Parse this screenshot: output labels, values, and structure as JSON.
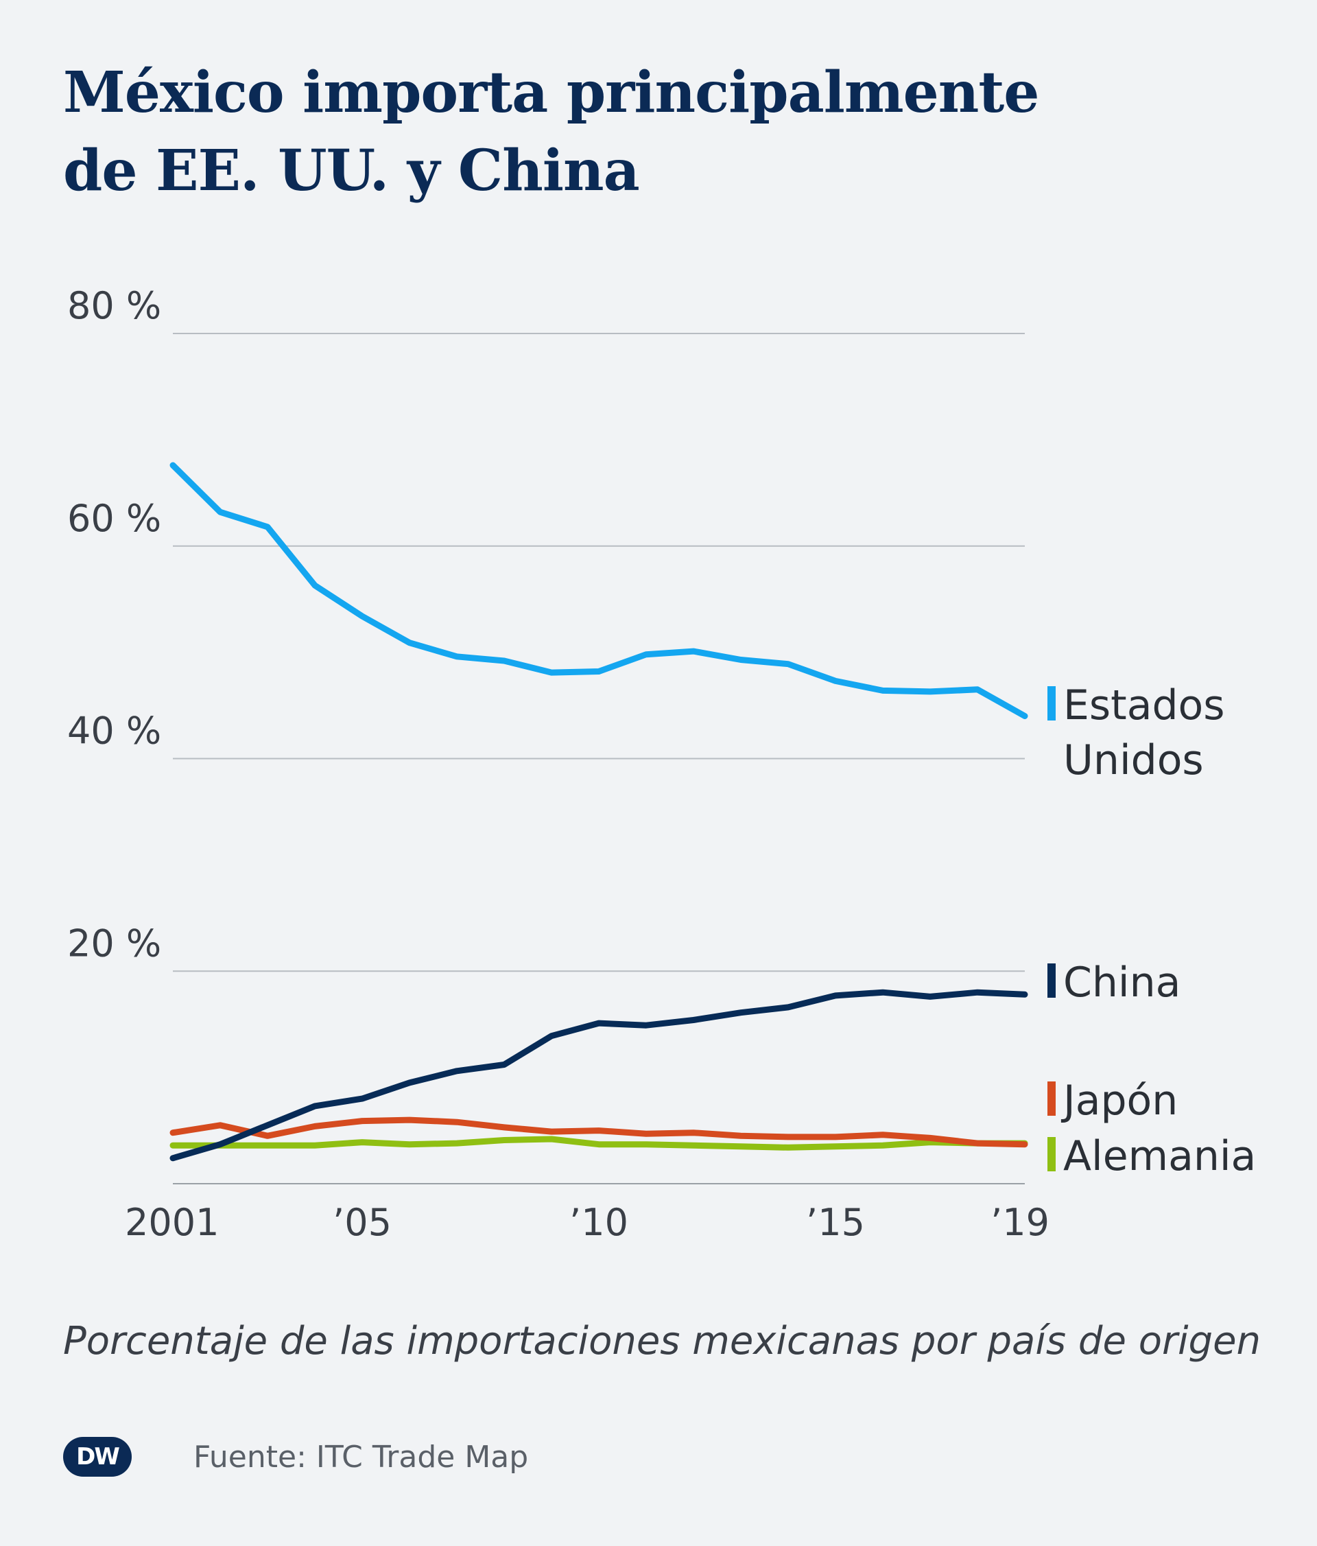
{
  "title_lines": [
    "México importa principalmente",
    "de EE. UU. y China"
  ],
  "subtitle": "Porcentaje de las importaciones mexicanas por país de origen",
  "source": "Fuente: ITC Trade Map",
  "logo_text": "DW",
  "chart_data": {
    "type": "line",
    "x": [
      2001,
      2002,
      2003,
      2004,
      2005,
      2006,
      2007,
      2008,
      2009,
      2010,
      2011,
      2012,
      2013,
      2014,
      2015,
      2016,
      2017,
      2018,
      2019
    ],
    "x_tick_values": [
      2001,
      2005,
      2010,
      2015,
      2019
    ],
    "x_tick_labels": [
      "2001",
      "’05",
      "’10",
      "’15",
      "’19"
    ],
    "ylim": [
      0,
      80
    ],
    "y_ticks": [
      20,
      40,
      60,
      80
    ],
    "y_tick_labels": [
      "20 %",
      "40 %",
      "60 %",
      "80 %"
    ],
    "grid": true,
    "legend_placement": "right, inline at line ends",
    "series": [
      {
        "name": "Estados Unidos",
        "name_lines": [
          "Estados",
          "Unidos"
        ],
        "color": "#14a6f0",
        "values": [
          67.6,
          63.2,
          61.8,
          56.3,
          53.4,
          50.9,
          49.6,
          49.2,
          48.1,
          48.2,
          49.8,
          50.1,
          49.3,
          48.9,
          47.3,
          46.4,
          46.3,
          46.5,
          44.0
        ]
      },
      {
        "name": "China",
        "name_lines": [
          "China"
        ],
        "color": "#072b57",
        "values": [
          2.4,
          3.7,
          5.5,
          7.3,
          8.0,
          9.5,
          10.6,
          11.2,
          13.9,
          15.1,
          14.9,
          15.4,
          16.1,
          16.6,
          17.7,
          18.0,
          17.6,
          18.0,
          17.8
        ]
      },
      {
        "name": "Japón",
        "name_lines": [
          "Japón"
        ],
        "color": "#d54b1f",
        "values": [
          4.8,
          5.5,
          4.5,
          5.4,
          5.9,
          6.0,
          5.8,
          5.3,
          4.9,
          5.0,
          4.7,
          4.8,
          4.5,
          4.4,
          4.4,
          4.6,
          4.3,
          3.8,
          3.7
        ]
      },
      {
        "name": "Alemania",
        "name_lines": [
          "Alemania"
        ],
        "color": "#8fbf13",
        "values": [
          3.6,
          3.6,
          3.6,
          3.6,
          3.9,
          3.7,
          3.8,
          4.1,
          4.2,
          3.7,
          3.7,
          3.6,
          3.5,
          3.4,
          3.5,
          3.6,
          3.9,
          3.8,
          3.8
        ]
      }
    ]
  }
}
